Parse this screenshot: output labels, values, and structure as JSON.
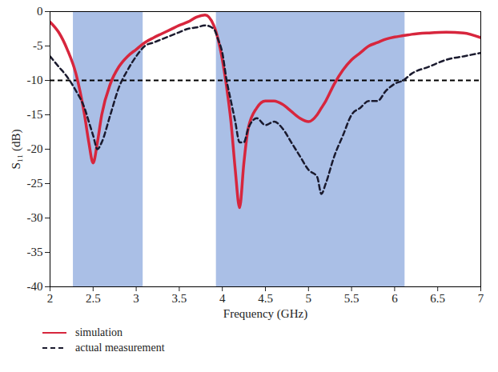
{
  "chart_data": {
    "type": "line",
    "x_label": "Frequency (GHz)",
    "y_label": "S₁₁ (dB)",
    "xlim": [
      2,
      7
    ],
    "xticks": [
      2,
      2.5,
      3,
      3.5,
      4,
      4.5,
      5,
      5.5,
      6,
      6.5,
      7
    ],
    "ylim": [
      -40,
      0
    ],
    "yticks": [
      -40,
      -35,
      -30,
      -25,
      -20,
      -15,
      -10,
      -5,
      0
    ],
    "grid": false,
    "legend": "bottom",
    "x": [
      2.0,
      2.1,
      2.2,
      2.3,
      2.4,
      2.45,
      2.5,
      2.55,
      2.6,
      2.7,
      2.8,
      2.9,
      3.0,
      3.1,
      3.2,
      3.3,
      3.4,
      3.5,
      3.6,
      3.7,
      3.8,
      3.9,
      3.95,
      4.0,
      4.05,
      4.1,
      4.15,
      4.2,
      4.25,
      4.3,
      4.4,
      4.5,
      4.6,
      4.7,
      4.8,
      4.9,
      5.0,
      5.1,
      5.15,
      5.2,
      5.3,
      5.4,
      5.5,
      5.6,
      5.7,
      5.8,
      5.9,
      6.0,
      6.1,
      6.2,
      6.4,
      6.6,
      6.8,
      7.0
    ],
    "series": [
      {
        "name": "simulation",
        "color": "#d7263d",
        "line_style": "solid",
        "values": [
          -1.5,
          -3,
          -5.5,
          -9,
          -15,
          -19,
          -22,
          -19,
          -15,
          -10.5,
          -8,
          -6.5,
          -5.5,
          -4.5,
          -3.8,
          -3.2,
          -2.6,
          -2,
          -1.5,
          -0.8,
          -0.5,
          -2,
          -4,
          -7,
          -11,
          -16,
          -23,
          -28.5,
          -22,
          -17,
          -14,
          -13,
          -13,
          -13.5,
          -14.5,
          -15.5,
          -16,
          -15,
          -14,
          -13,
          -10.5,
          -8.5,
          -7,
          -6,
          -5,
          -4.5,
          -4,
          -3.7,
          -3.5,
          -3.3,
          -3.1,
          -3,
          -3.1,
          -3.8
        ]
      },
      {
        "name": "actual measurement",
        "color": "#1a1a2e",
        "line_style": "dashed",
        "values": [
          -6.5,
          -8,
          -9.5,
          -11.5,
          -14,
          -16,
          -18,
          -20,
          -19,
          -15,
          -11,
          -8.5,
          -6.5,
          -5,
          -4.5,
          -4,
          -3.5,
          -3,
          -2.5,
          -2.3,
          -2,
          -2.5,
          -4,
          -6,
          -10,
          -13,
          -16,
          -19,
          -19,
          -17,
          -15.5,
          -16.5,
          -16,
          -17,
          -19,
          -21,
          -23,
          -24,
          -26.5,
          -25,
          -21,
          -18,
          -15,
          -14,
          -13,
          -13,
          -11.5,
          -10.5,
          -10,
          -9,
          -8,
          -7,
          -6.5,
          -6
        ]
      }
    ],
    "bands": {
      "ranges": [
        [
          2.27,
          3.08
        ],
        [
          3.93,
          6.12
        ]
      ],
      "color": "#aabfe6"
    },
    "reference_line": {
      "y": -10,
      "color": "#000000",
      "line_style": "dashed"
    }
  }
}
